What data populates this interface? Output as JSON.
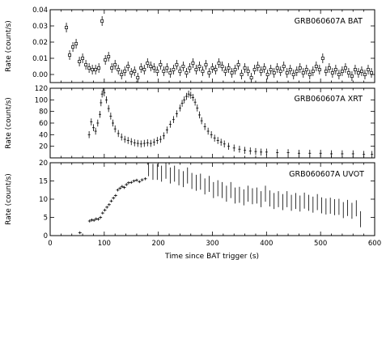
{
  "chart_data": [
    {
      "type": "scatter",
      "title": "GRB060607A BAT",
      "ylabel": "Rate (count/s)",
      "xlim": [
        0,
        600
      ],
      "ylim": [
        -0.005,
        0.04
      ],
      "yticks": [
        "0.00",
        "0.01",
        "0.02",
        "0.03",
        "0.04"
      ],
      "ytick_values": [
        0.0,
        0.01,
        0.02,
        0.03,
        0.04
      ],
      "series": [
        {
          "x": [
            30,
            36,
            42,
            48,
            54,
            60,
            66,
            72,
            78,
            84,
            90,
            96,
            102,
            108,
            114,
            120,
            126,
            132,
            138,
            144,
            150,
            156,
            162,
            168,
            174,
            180,
            186,
            192,
            198,
            204,
            210,
            216,
            222,
            228,
            234,
            240,
            246,
            252,
            258,
            264,
            270,
            276,
            282,
            288,
            294,
            300,
            306,
            312,
            318,
            324,
            330,
            336,
            342,
            348,
            354,
            360,
            366,
            372,
            378,
            384,
            390,
            396,
            402,
            408,
            414,
            420,
            426,
            432,
            438,
            444,
            450,
            456,
            462,
            468,
            474,
            480,
            486,
            492,
            498,
            504,
            510,
            516,
            522,
            528,
            534,
            540,
            546,
            552,
            558,
            564,
            570,
            576,
            582,
            588,
            594
          ],
          "y": [
            0.029,
            0.012,
            0.017,
            0.019,
            0.008,
            0.01,
            0.006,
            0.004,
            0.003,
            0.003,
            0.004,
            0.033,
            0.009,
            0.011,
            0.004,
            0.006,
            0.003,
            0.0,
            0.002,
            0.005,
            0.001,
            0.002,
            -0.002,
            0.004,
            0.003,
            0.007,
            0.005,
            0.004,
            0.002,
            0.006,
            0.002,
            0.004,
            0.001,
            0.003,
            0.006,
            0.002,
            0.005,
            0.001,
            0.004,
            0.007,
            0.003,
            0.005,
            0.002,
            0.006,
            0.001,
            0.004,
            0.003,
            0.007,
            0.005,
            0.002,
            0.004,
            0.001,
            0.003,
            0.006,
            0.0,
            0.004,
            0.002,
            -0.002,
            0.003,
            0.005,
            0.002,
            0.004,
            0.0,
            0.003,
            0.001,
            0.004,
            0.002,
            0.005,
            0.001,
            0.003,
            0.0,
            0.002,
            0.004,
            0.001,
            0.003,
            0.0,
            0.002,
            0.005,
            0.003,
            0.01,
            0.002,
            0.004,
            0.001,
            0.003,
            0.0,
            0.002,
            0.004,
            0.001,
            -0.001,
            0.003,
            0.001,
            0.002,
            0.0,
            0.003,
            0.001
          ],
          "err": 0.003
        }
      ]
    },
    {
      "type": "line",
      "title": "GRB060607A  XRT",
      "ylabel": "Rate (count/s)",
      "xlim": [
        0,
        600
      ],
      "ylim": [
        0,
        120
      ],
      "yticks": [
        "20",
        "40",
        "60",
        "80",
        "100",
        "120"
      ],
      "ytick_values": [
        20,
        40,
        60,
        80,
        100,
        120
      ],
      "series": [
        {
          "x": [
            72,
            76,
            80,
            84,
            88,
            92,
            94,
            96,
            98,
            100,
            104,
            108,
            112,
            116,
            120,
            126,
            132,
            138,
            144,
            150,
            156,
            162,
            168,
            174,
            180,
            186,
            192,
            198,
            204,
            210,
            216,
            222,
            228,
            234,
            240,
            244,
            248,
            252,
            256,
            260,
            264,
            268,
            272,
            276,
            280,
            286,
            292,
            298,
            304,
            310,
            316,
            322,
            330,
            340,
            350,
            360,
            370,
            380,
            390,
            400,
            420,
            440,
            460,
            480,
            500,
            520,
            540,
            560,
            580,
            595
          ],
          "y": [
            40,
            62,
            52,
            46,
            60,
            75,
            95,
            110,
            120,
            112,
            100,
            85,
            72,
            60,
            50,
            42,
            36,
            32,
            30,
            28,
            26,
            25,
            24,
            25,
            26,
            25,
            27,
            30,
            32,
            38,
            48,
            58,
            66,
            76,
            86,
            94,
            100,
            106,
            110,
            108,
            104,
            96,
            86,
            74,
            64,
            54,
            46,
            40,
            34,
            30,
            27,
            24,
            20,
            17,
            15,
            13,
            12,
            11,
            10,
            10,
            9,
            9,
            8,
            8,
            8,
            7,
            7,
            7,
            6,
            6
          ],
          "err": 6
        }
      ]
    },
    {
      "type": "scatter",
      "title": "GRB060607A  UVOT",
      "ylabel": "Rate (count/s)",
      "xlabel": "Time since BAT trigger (s)",
      "xlim": [
        0,
        600
      ],
      "ylim": [
        0,
        20
      ],
      "yticks": [
        "0",
        "5",
        "10",
        "15",
        "20"
      ],
      "ytick_values": [
        0,
        5,
        10,
        15,
        20
      ],
      "xticks": [
        "0",
        "100",
        "200",
        "300",
        "400",
        "500",
        "600"
      ],
      "xtick_values": [
        0,
        100,
        200,
        300,
        400,
        500,
        600
      ],
      "series": [
        {
          "x": [
            55,
            73,
            77,
            81,
            85,
            89,
            93,
            97,
            101,
            105,
            109,
            113,
            117,
            121,
            125,
            129,
            133,
            137,
            141,
            145,
            150,
            155,
            160,
            165,
            170,
            176
          ],
          "y": [
            0.8,
            4.0,
            4.3,
            4.2,
            4.6,
            4.5,
            5.0,
            6.2,
            7.0,
            7.8,
            8.5,
            9.5,
            10.3,
            11.0,
            12.5,
            13.0,
            13.5,
            13.2,
            14.0,
            14.5,
            14.6,
            15.0,
            15.2,
            14.8,
            15.3,
            15.6
          ],
          "err": 0.4
        },
        {
          "x": [
            182,
            190,
            198,
            206,
            214,
            222,
            230,
            238,
            246,
            254,
            262,
            270,
            278,
            286,
            294,
            302,
            310,
            318,
            326,
            334,
            342,
            350,
            358,
            366,
            374,
            382,
            390,
            398,
            406,
            414,
            422,
            430,
            438,
            446,
            454,
            462,
            470,
            478,
            486,
            494,
            502,
            510,
            518,
            526,
            534,
            542,
            550,
            558,
            566,
            574
          ],
          "y": [
            18.5,
            17.5,
            17.5,
            17.0,
            17.8,
            16.5,
            17.0,
            16.0,
            15.5,
            16.5,
            15.0,
            14.5,
            14.8,
            13.5,
            14.2,
            12.5,
            13.0,
            12.5,
            11.5,
            12.5,
            11.0,
            11.2,
            10.5,
            11.5,
            10.8,
            11.0,
            10.0,
            11.5,
            10.2,
            9.5,
            10.0,
            9.2,
            10.0,
            9.0,
            9.5,
            8.8,
            9.6,
            9.0,
            8.5,
            9.2,
            8.3,
            8.0,
            8.2,
            7.8,
            7.9,
            7.0,
            7.6,
            6.8,
            7.5,
            4.5
          ],
          "err": 2.2
        }
      ]
    }
  ]
}
